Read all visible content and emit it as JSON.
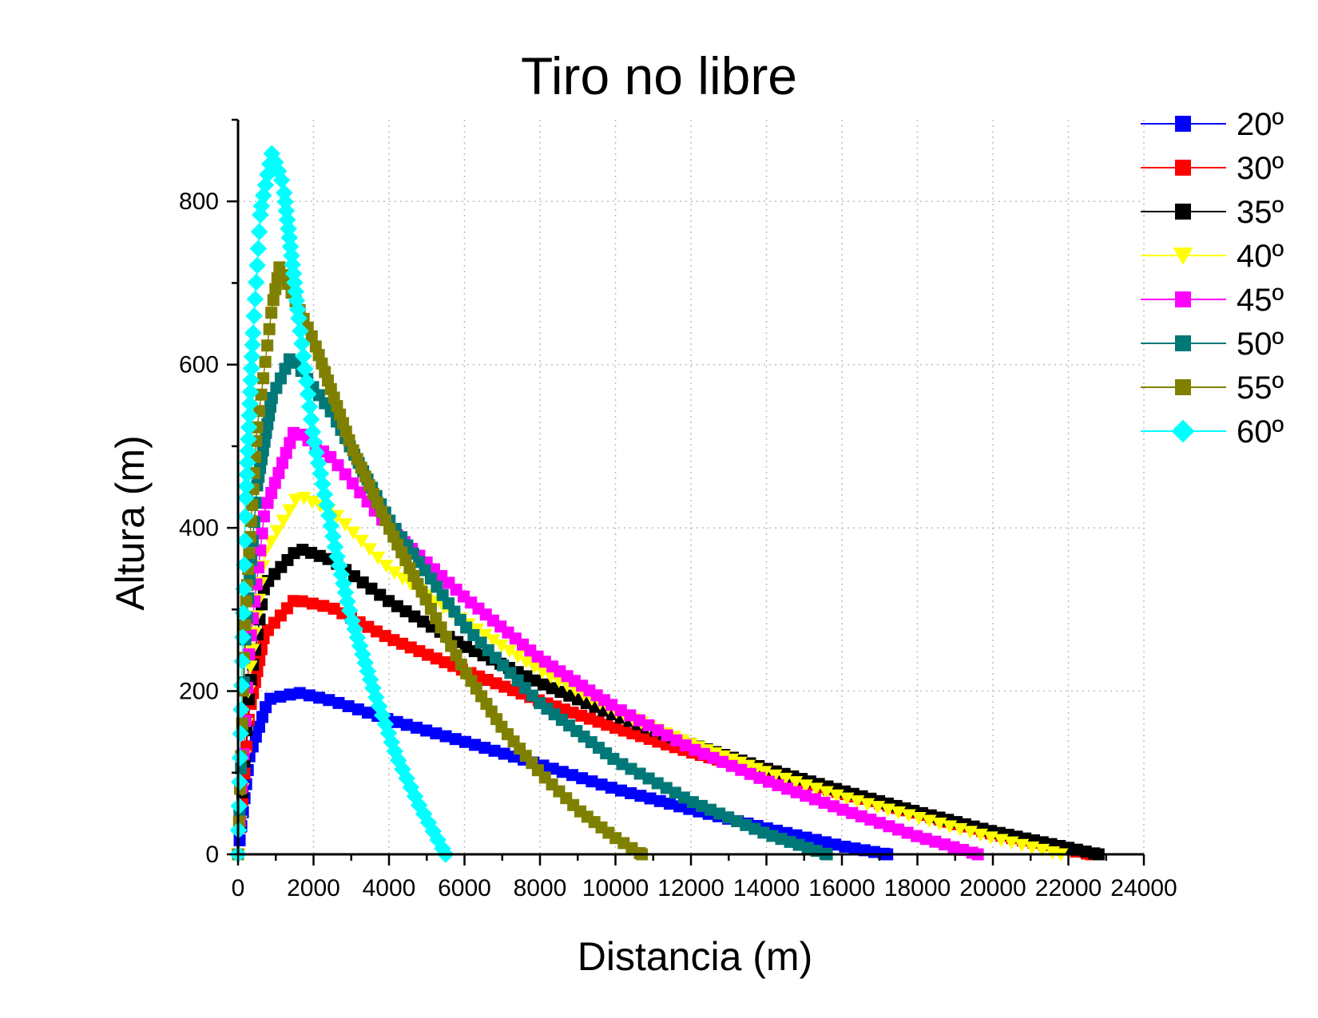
{
  "chart_data": {
    "type": "scatter",
    "title": "Tiro no libre",
    "xlabel": "Distancia (m)",
    "ylabel": "Altura (m)",
    "xlim": [
      0,
      24000
    ],
    "ylim": [
      0,
      900
    ],
    "xticks": [
      0,
      2000,
      4000,
      6000,
      8000,
      10000,
      12000,
      14000,
      16000,
      18000,
      20000,
      22000,
      24000
    ],
    "yticks": [
      0,
      200,
      400,
      600,
      800
    ],
    "grid": true,
    "legend_position": "top-right",
    "series": [
      {
        "name": "20º",
        "color": "#0000ff",
        "marker": "square",
        "x": [
          0,
          300,
          800,
          1600,
          2500,
          4000,
          6000,
          8000,
          10000,
          12000,
          14000,
          16000,
          17200
        ],
        "y": [
          0,
          120,
          190,
          198,
          188,
          165,
          138,
          110,
          80,
          55,
          32,
          10,
          0
        ]
      },
      {
        "name": "30º",
        "color": "#ff0000",
        "marker": "square",
        "x": [
          0,
          300,
          700,
          1500,
          2500,
          4000,
          6000,
          8000,
          10000,
          12000,
          14000,
          16000,
          18000,
          20000,
          22000,
          22600
        ],
        "y": [
          0,
          175,
          270,
          312,
          302,
          265,
          225,
          188,
          155,
          125,
          100,
          75,
          50,
          25,
          5,
          0
        ]
      },
      {
        "name": "35º",
        "color": "#000000",
        "marker": "square",
        "x": [
          0,
          300,
          700,
          1600,
          2500,
          4000,
          6000,
          8000,
          10000,
          12000,
          14000,
          16000,
          18000,
          20000,
          22000,
          22800
        ],
        "y": [
          0,
          200,
          330,
          375,
          360,
          310,
          255,
          210,
          170,
          135,
          105,
          78,
          52,
          28,
          8,
          0
        ]
      },
      {
        "name": "40º",
        "color": "#ffff00",
        "marker": "triangle-down",
        "x": [
          0,
          300,
          700,
          1600,
          2500,
          4000,
          6000,
          8000,
          10000,
          12000,
          14000,
          16000,
          18000,
          20000,
          21800
        ],
        "y": [
          0,
          220,
          370,
          440,
          420,
          350,
          285,
          225,
          175,
          135,
          100,
          70,
          45,
          20,
          0
        ]
      },
      {
        "name": "45º",
        "color": "#ff00ff",
        "marker": "square",
        "x": [
          0,
          300,
          700,
          1500,
          2500,
          4000,
          6000,
          8000,
          10000,
          12000,
          14000,
          16000,
          18000,
          19600
        ],
        "y": [
          0,
          250,
          420,
          520,
          485,
          400,
          315,
          240,
          180,
          130,
          90,
          55,
          22,
          0
        ]
      },
      {
        "name": "50º",
        "color": "#007878",
        "marker": "square",
        "x": [
          0,
          200,
          500,
          900,
          1400,
          2500,
          4000,
          6000,
          8000,
          10000,
          12000,
          14000,
          15600
        ],
        "y": [
          0,
          270,
          450,
          560,
          610,
          540,
          410,
          280,
          185,
          115,
          65,
          25,
          0
        ]
      },
      {
        "name": "55º",
        "color": "#808000",
        "marker": "square",
        "x": [
          0,
          200,
          500,
          900,
          1100,
          2000,
          3000,
          4000,
          5000,
          6000,
          7000,
          8000,
          9000,
          10000,
          10700
        ],
        "y": [
          0,
          300,
          520,
          670,
          720,
          630,
          500,
          400,
          310,
          225,
          155,
          100,
          55,
          20,
          0
        ]
      },
      {
        "name": "60º",
        "color": "#00ffff",
        "marker": "diamond",
        "x": [
          0,
          200,
          400,
          600,
          900,
          1200,
          1600,
          2000,
          2600,
          3000,
          3600,
          4200,
          4800,
          5500
        ],
        "y": [
          0,
          430,
          640,
          790,
          860,
          820,
          660,
          510,
          370,
          290,
          200,
          120,
          60,
          0
        ]
      }
    ]
  }
}
